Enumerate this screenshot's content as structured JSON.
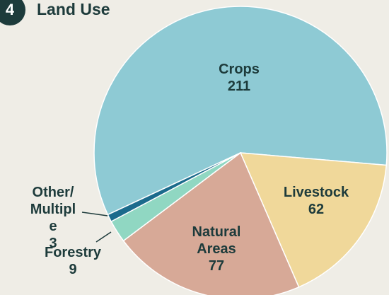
{
  "chart_data": {
    "type": "pie",
    "number": "4",
    "title": "Land Use",
    "categories": [
      "Crops",
      "Livestock",
      "Natural Areas",
      "Forestry",
      "Other/Multiple"
    ],
    "values": [
      211,
      62,
      77,
      9,
      3
    ],
    "colors": [
      "#8ecad4",
      "#f0d89a",
      "#d7a997",
      "#90d7c2",
      "#1b6b8c"
    ]
  }
}
